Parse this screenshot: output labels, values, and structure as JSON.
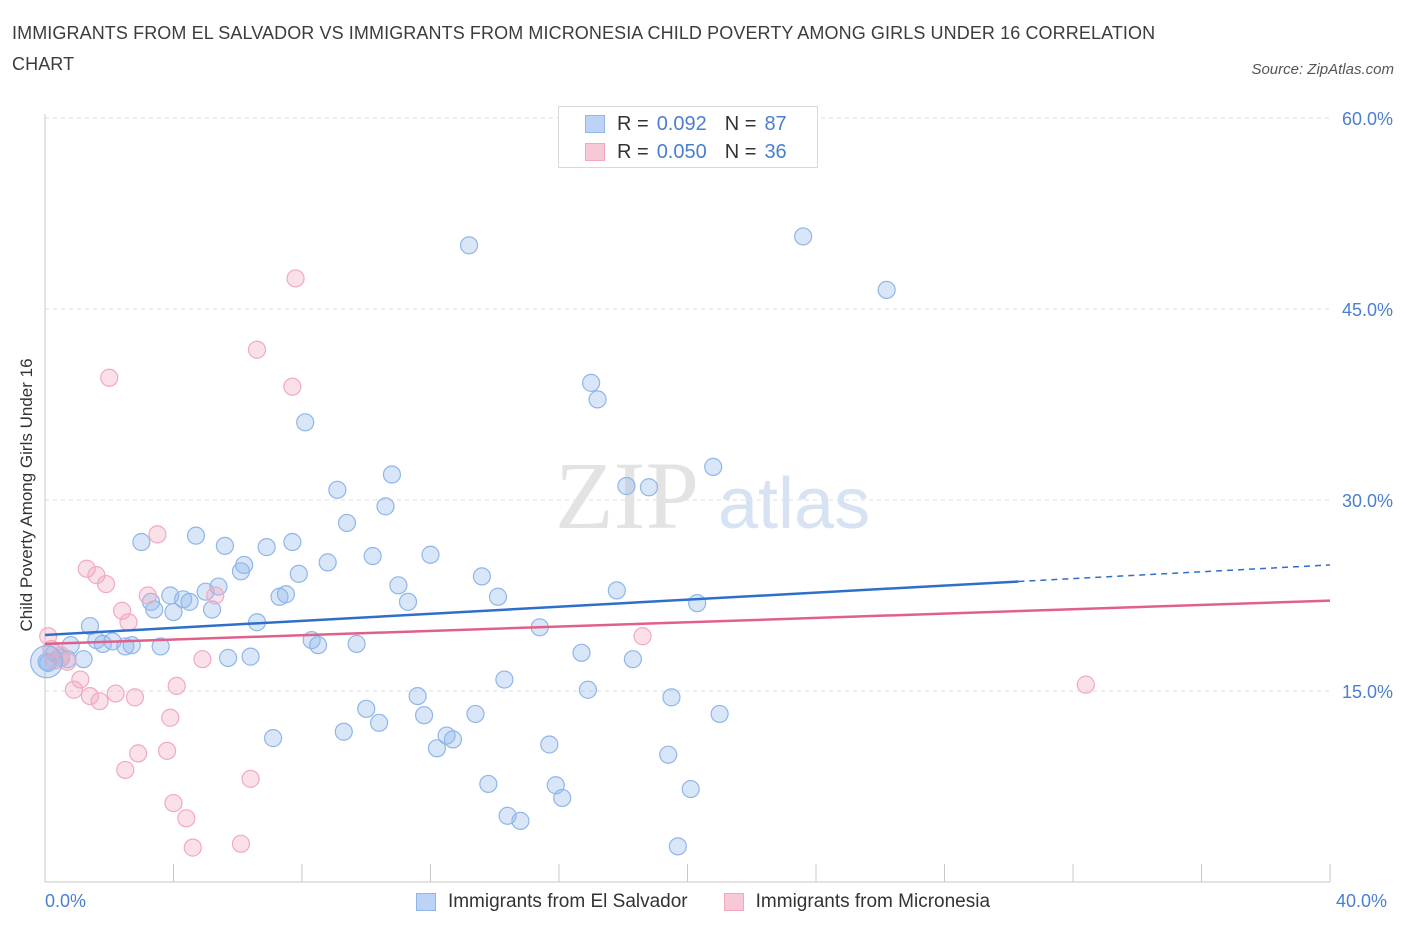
{
  "header": {
    "title": "IMMIGRANTS FROM EL SALVADOR VS IMMIGRANTS FROM MICRONESIA CHILD POVERTY AMONG GIRLS UNDER 16 CORRELATION CHART",
    "source": "Source: ZipAtlas.com"
  },
  "watermark": {
    "zip": "ZIP",
    "atlas": "atlas"
  },
  "legend": {
    "r_label": "R =",
    "n_label": "N =",
    "series1": {
      "r": "0.092",
      "n": "87"
    },
    "series2": {
      "r": "0.050",
      "n": "36"
    }
  },
  "chart_data": {
    "type": "scatter",
    "title": "IMMIGRANTS FROM EL SALVADOR VS IMMIGRANTS FROM MICRONESIA CHILD POVERTY AMONG GIRLS UNDER 16 CORRELATION CHART",
    "xlabel": "",
    "ylabel": "Child Poverty Among Girls Under 16",
    "xlim": [
      0,
      40
    ],
    "ylim": [
      0,
      60
    ],
    "x_tick_labels": [
      "0.0%",
      "40.0%"
    ],
    "y_tick_labels": [
      "15.0%",
      "30.0%",
      "45.0%",
      "60.0%"
    ],
    "y_ticks": [
      15,
      30,
      45,
      60
    ],
    "grid": true,
    "legend_position": "top-center",
    "series": [
      {
        "name": "Immigrants from El Salvador",
        "color": "#8fb6ea",
        "line_color": "#2f6fcc",
        "trend": {
          "x": [
            0,
            30.3
          ],
          "y": [
            19.4,
            23.6
          ],
          "dashed_to": [
            40,
            24.9
          ]
        },
        "points": [
          [
            0.1,
            17.2
          ],
          [
            0.3,
            18.0
          ],
          [
            0.5,
            17.6
          ],
          [
            0.8,
            18.6
          ],
          [
            1.2,
            17.5
          ],
          [
            1.4,
            20.1
          ],
          [
            1.6,
            19.0
          ],
          [
            1.8,
            18.7
          ],
          [
            2.1,
            18.9
          ],
          [
            2.5,
            18.5
          ],
          [
            2.7,
            18.6
          ],
          [
            3.0,
            26.7
          ],
          [
            3.3,
            22.0
          ],
          [
            3.4,
            21.4
          ],
          [
            3.6,
            18.5
          ],
          [
            3.9,
            22.5
          ],
          [
            4.0,
            21.2
          ],
          [
            4.3,
            22.2
          ],
          [
            4.5,
            22.0
          ],
          [
            4.7,
            27.2
          ],
          [
            5.0,
            22.8
          ],
          [
            5.2,
            21.4
          ],
          [
            5.4,
            23.2
          ],
          [
            5.6,
            26.4
          ],
          [
            5.7,
            17.6
          ],
          [
            6.1,
            24.4
          ],
          [
            6.2,
            24.9
          ],
          [
            6.4,
            17.7
          ],
          [
            6.6,
            20.4
          ],
          [
            6.9,
            26.3
          ],
          [
            7.1,
            11.3
          ],
          [
            7.3,
            22.4
          ],
          [
            7.5,
            22.6
          ],
          [
            7.7,
            26.7
          ],
          [
            7.9,
            24.2
          ],
          [
            8.1,
            36.1
          ],
          [
            8.3,
            19.0
          ],
          [
            8.5,
            18.6
          ],
          [
            8.8,
            25.1
          ],
          [
            9.1,
            30.8
          ],
          [
            9.3,
            11.8
          ],
          [
            9.4,
            28.2
          ],
          [
            9.7,
            18.7
          ],
          [
            10.0,
            13.6
          ],
          [
            10.2,
            25.6
          ],
          [
            10.4,
            12.5
          ],
          [
            10.6,
            29.5
          ],
          [
            10.8,
            32.0
          ],
          [
            11.0,
            23.3
          ],
          [
            11.3,
            22.0
          ],
          [
            11.6,
            14.6
          ],
          [
            11.8,
            13.1
          ],
          [
            12.0,
            25.7
          ],
          [
            12.2,
            10.5
          ],
          [
            12.5,
            11.5
          ],
          [
            12.7,
            11.2
          ],
          [
            13.2,
            50.0
          ],
          [
            13.4,
            13.2
          ],
          [
            13.6,
            24.0
          ],
          [
            13.8,
            7.7
          ],
          [
            14.1,
            22.4
          ],
          [
            14.3,
            15.9
          ],
          [
            14.4,
            5.2
          ],
          [
            14.8,
            4.8
          ],
          [
            15.4,
            20.0
          ],
          [
            15.7,
            10.8
          ],
          [
            15.9,
            7.6
          ],
          [
            16.1,
            6.6
          ],
          [
            16.7,
            18.0
          ],
          [
            16.9,
            15.1
          ],
          [
            17.0,
            39.2
          ],
          [
            17.2,
            37.9
          ],
          [
            17.8,
            22.9
          ],
          [
            18.1,
            31.1
          ],
          [
            18.3,
            17.5
          ],
          [
            18.8,
            31.0
          ],
          [
            19.4,
            10.0
          ],
          [
            19.5,
            14.5
          ],
          [
            19.7,
            2.8
          ],
          [
            20.1,
            7.3
          ],
          [
            20.3,
            21.9
          ],
          [
            20.8,
            32.6
          ],
          [
            21.0,
            13.2
          ],
          [
            23.6,
            50.7
          ],
          [
            26.2,
            46.5
          ],
          [
            0.05,
            17.3
          ],
          [
            0.7,
            17.5
          ]
        ]
      },
      {
        "name": "Immigrants from Micronesia",
        "color": "#f2a9c0",
        "line_color": "#e0608a",
        "trend": {
          "x": [
            0,
            40
          ],
          "y": [
            18.7,
            22.1
          ]
        },
        "points": [
          [
            0.1,
            19.3
          ],
          [
            0.3,
            17.4
          ],
          [
            0.5,
            17.8
          ],
          [
            0.7,
            17.3
          ],
          [
            0.9,
            15.1
          ],
          [
            1.1,
            15.9
          ],
          [
            1.3,
            24.6
          ],
          [
            1.4,
            14.6
          ],
          [
            1.6,
            24.1
          ],
          [
            1.7,
            14.2
          ],
          [
            1.9,
            23.4
          ],
          [
            2.0,
            39.6
          ],
          [
            2.2,
            14.8
          ],
          [
            2.4,
            21.3
          ],
          [
            2.5,
            8.8
          ],
          [
            2.6,
            20.4
          ],
          [
            2.8,
            14.5
          ],
          [
            2.9,
            10.1
          ],
          [
            3.2,
            22.5
          ],
          [
            3.5,
            27.3
          ],
          [
            3.8,
            10.3
          ],
          [
            3.9,
            12.9
          ],
          [
            4.0,
            6.2
          ],
          [
            4.1,
            15.4
          ],
          [
            4.4,
            5.0
          ],
          [
            4.6,
            2.7
          ],
          [
            4.9,
            17.5
          ],
          [
            5.3,
            22.5
          ],
          [
            6.1,
            3.0
          ],
          [
            6.4,
            8.1
          ],
          [
            6.6,
            41.8
          ],
          [
            7.7,
            38.9
          ],
          [
            7.8,
            47.4
          ],
          [
            18.6,
            19.3
          ],
          [
            32.4,
            15.5
          ],
          [
            0.2,
            18.3
          ]
        ]
      }
    ]
  }
}
